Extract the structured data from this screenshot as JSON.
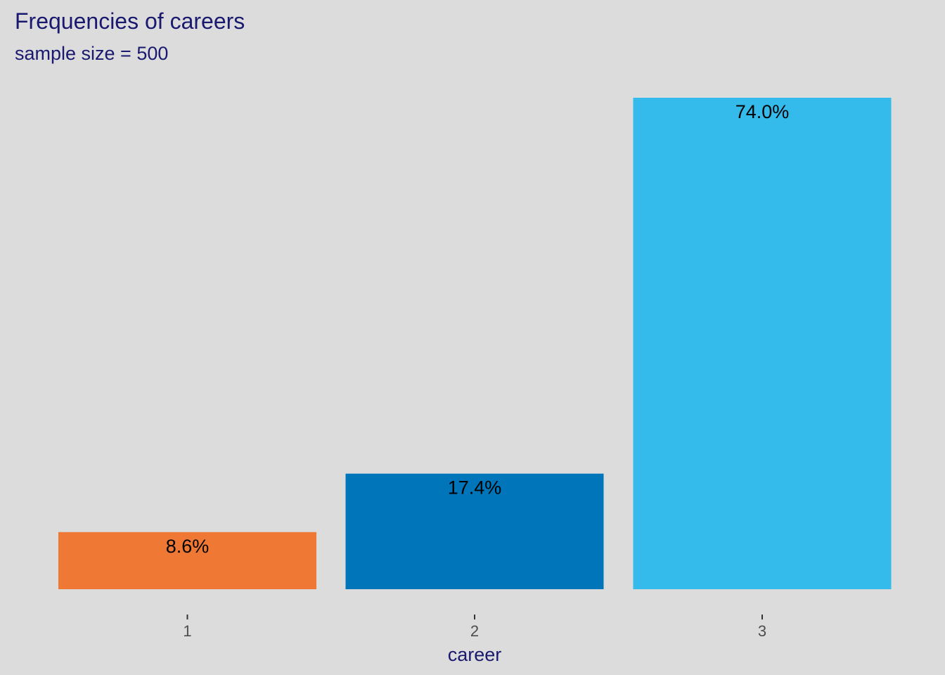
{
  "chart_data": {
    "type": "bar",
    "title": "Frequencies of careers",
    "subtitle": "sample size = 500",
    "xlabel": "career",
    "ylabel": "",
    "categories": [
      "1",
      "2",
      "3"
    ],
    "values": [
      8.6,
      17.4,
      74.0
    ],
    "data_labels": [
      "8.6%",
      "17.4%",
      "74.0%"
    ],
    "colors": [
      "#f07835",
      "#0075b9",
      "#34baeb"
    ],
    "ylim": [
      0,
      74.0
    ],
    "grid": false,
    "legend": "none"
  }
}
